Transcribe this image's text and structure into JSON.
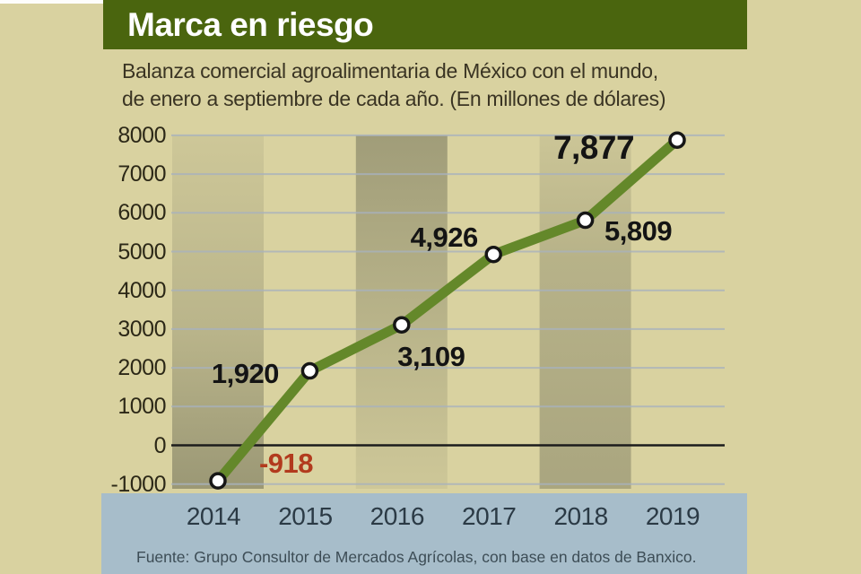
{
  "page": {
    "title": "Marca en riesgo",
    "subtitle_line1": "Balanza comercial agroalimentaria de México con el mundo,",
    "subtitle_line2": "de enero a septiembre de cada año. (En millones de dólares)",
    "source": "Fuente: Grupo Consultor de Mercados Agrícolas, con base en datos de Banxico.",
    "colors": {
      "background": "#d9d2a0",
      "banner_green": "#4a650e",
      "title_text": "#ffffff",
      "subtitle_text": "#3a3423",
      "line_green": "#64882a",
      "point_fill": "#ffffff",
      "point_stroke": "#161616",
      "gridline": "#a8b1bd",
      "zero_line": "#1c1c1c",
      "band_gray": "#686852",
      "axis_text": "#2c2817",
      "xaxis_strip_blue": "#a7bdca",
      "year_text": "#2b3a45",
      "source_text": "#3d4d56",
      "label_text": "#141414",
      "negative_label": "#b23a1d"
    }
  },
  "chart_data": {
    "type": "line",
    "title": "Marca en riesgo",
    "subtitle": "Balanza comercial agroalimentaria de México con el mundo, de enero a septiembre de cada año. (En millones de dólares)",
    "unit": "millones de dólares",
    "categories": [
      "2014",
      "2015",
      "2016",
      "2017",
      "2018",
      "2019"
    ],
    "values": [
      -918,
      1920,
      3109,
      4926,
      5809,
      7877
    ],
    "point_labels": [
      "-918",
      "1,920",
      "3,109",
      "4,926",
      "5,809",
      "7,877"
    ],
    "yticks": [
      8000,
      7000,
      6000,
      5000,
      4000,
      3000,
      2000,
      1000,
      0,
      -1000
    ],
    "ylim": [
      -1000,
      8000
    ],
    "grid": "horizontal",
    "legend": "none",
    "shaded_year_columns": [
      "2014",
      "2016",
      "2018"
    ],
    "source": "Fuente: Grupo Consultor de Mercados Agrícolas, con base en datos de Banxico."
  }
}
